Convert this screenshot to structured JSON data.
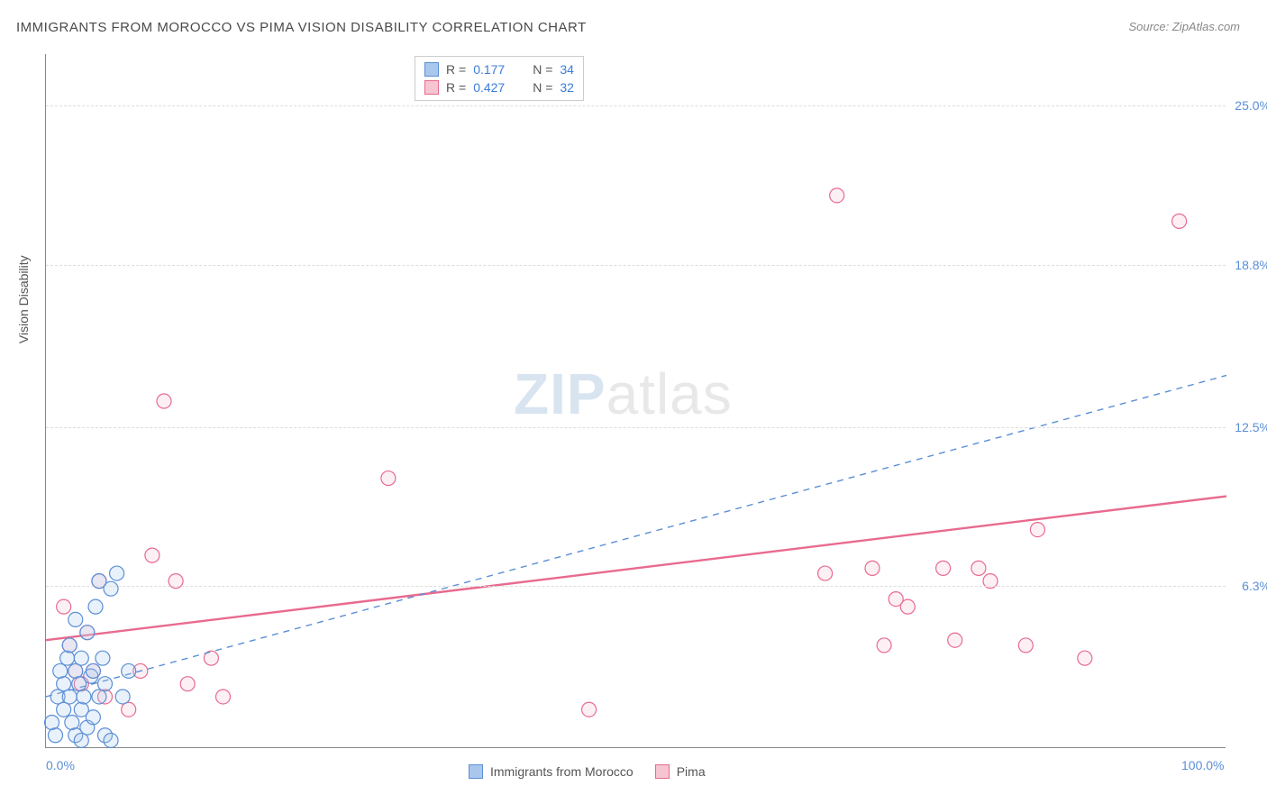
{
  "title": "IMMIGRANTS FROM MOROCCO VS PIMA VISION DISABILITY CORRELATION CHART",
  "source_label": "Source: ZipAtlas.com",
  "y_axis_title": "Vision Disability",
  "watermark": {
    "bold": "ZIP",
    "rest": "atlas"
  },
  "chart": {
    "type": "scatter",
    "background_color": "#ffffff",
    "grid_color": "#dddddd",
    "axis_color": "#888888",
    "xlim": [
      0,
      100
    ],
    "ylim": [
      0,
      27
    ],
    "xticks": [
      {
        "value": 0,
        "label": "0.0%"
      },
      {
        "value": 100,
        "label": "100.0%"
      }
    ],
    "yticks": [
      {
        "value": 6.3,
        "label": "6.3%"
      },
      {
        "value": 12.5,
        "label": "12.5%"
      },
      {
        "value": 18.8,
        "label": "18.8%"
      },
      {
        "value": 25.0,
        "label": "25.0%"
      }
    ],
    "marker_radius": 8,
    "marker_fill_opacity": 0.25,
    "marker_stroke_width": 1.2,
    "series": [
      {
        "key": "morocco",
        "label": "Immigrants from Morocco",
        "color": "#5b8fd6",
        "fill": "#a9c7ec",
        "R": "0.177",
        "N": "34",
        "trend": {
          "style": "dashed",
          "width": 1.4,
          "x1": 0,
          "y1": 2.0,
          "x2": 100,
          "y2": 14.5
        },
        "points": [
          [
            0.5,
            1.0
          ],
          [
            0.8,
            0.5
          ],
          [
            1.0,
            2.0
          ],
          [
            1.2,
            3.0
          ],
          [
            1.5,
            1.5
          ],
          [
            1.5,
            2.5
          ],
          [
            1.8,
            3.5
          ],
          [
            2.0,
            2.0
          ],
          [
            2.0,
            4.0
          ],
          [
            2.2,
            1.0
          ],
          [
            2.5,
            3.0
          ],
          [
            2.5,
            5.0
          ],
          [
            2.8,
            2.5
          ],
          [
            3.0,
            1.5
          ],
          [
            3.0,
            3.5
          ],
          [
            3.2,
            2.0
          ],
          [
            3.5,
            4.5
          ],
          [
            3.5,
            0.8
          ],
          [
            3.8,
            2.8
          ],
          [
            4.0,
            3.0
          ],
          [
            4.0,
            1.2
          ],
          [
            4.2,
            5.5
          ],
          [
            4.5,
            2.0
          ],
          [
            4.5,
            6.5
          ],
          [
            4.8,
            3.5
          ],
          [
            5.0,
            0.5
          ],
          [
            5.0,
            2.5
          ],
          [
            5.5,
            6.2
          ],
          [
            5.5,
            0.3
          ],
          [
            6.0,
            6.8
          ],
          [
            6.5,
            2.0
          ],
          [
            7.0,
            3.0
          ],
          [
            2.5,
            0.5
          ],
          [
            3.0,
            0.3
          ]
        ]
      },
      {
        "key": "pima",
        "label": "Pima",
        "color": "#e86a8f",
        "fill": "#f7c4d2",
        "R": "0.427",
        "N": "32",
        "trend": {
          "style": "solid",
          "width": 2.4,
          "x1": 0,
          "y1": 4.2,
          "x2": 100,
          "y2": 9.8
        },
        "points": [
          [
            1.5,
            5.5
          ],
          [
            2.0,
            4.0
          ],
          [
            2.5,
            3.0
          ],
          [
            3.0,
            2.5
          ],
          [
            3.5,
            4.5
          ],
          [
            4.0,
            3.0
          ],
          [
            4.5,
            6.5
          ],
          [
            5.0,
            2.0
          ],
          [
            7.0,
            1.5
          ],
          [
            8.0,
            3.0
          ],
          [
            9.0,
            7.5
          ],
          [
            10.0,
            13.5
          ],
          [
            11.0,
            6.5
          ],
          [
            12.0,
            2.5
          ],
          [
            14.0,
            3.5
          ],
          [
            15.0,
            2.0
          ],
          [
            29.0,
            10.5
          ],
          [
            46.0,
            1.5
          ],
          [
            66.0,
            6.8
          ],
          [
            67.0,
            21.5
          ],
          [
            70.0,
            7.0
          ],
          [
            71.0,
            4.0
          ],
          [
            73.0,
            5.5
          ],
          [
            76.0,
            7.0
          ],
          [
            77.0,
            4.2
          ],
          [
            79.0,
            7.0
          ],
          [
            80.0,
            6.5
          ],
          [
            83.0,
            4.0
          ],
          [
            84.0,
            8.5
          ],
          [
            88.0,
            3.5
          ],
          [
            96.0,
            20.5
          ],
          [
            72.0,
            5.8
          ]
        ]
      }
    ]
  },
  "legend_bottom": [
    {
      "label": "Immigrants from Morocco",
      "fill": "#a9c7ec",
      "stroke": "#5b8fd6"
    },
    {
      "label": "Pima",
      "fill": "#f7c4d2",
      "stroke": "#e86a8f"
    }
  ]
}
